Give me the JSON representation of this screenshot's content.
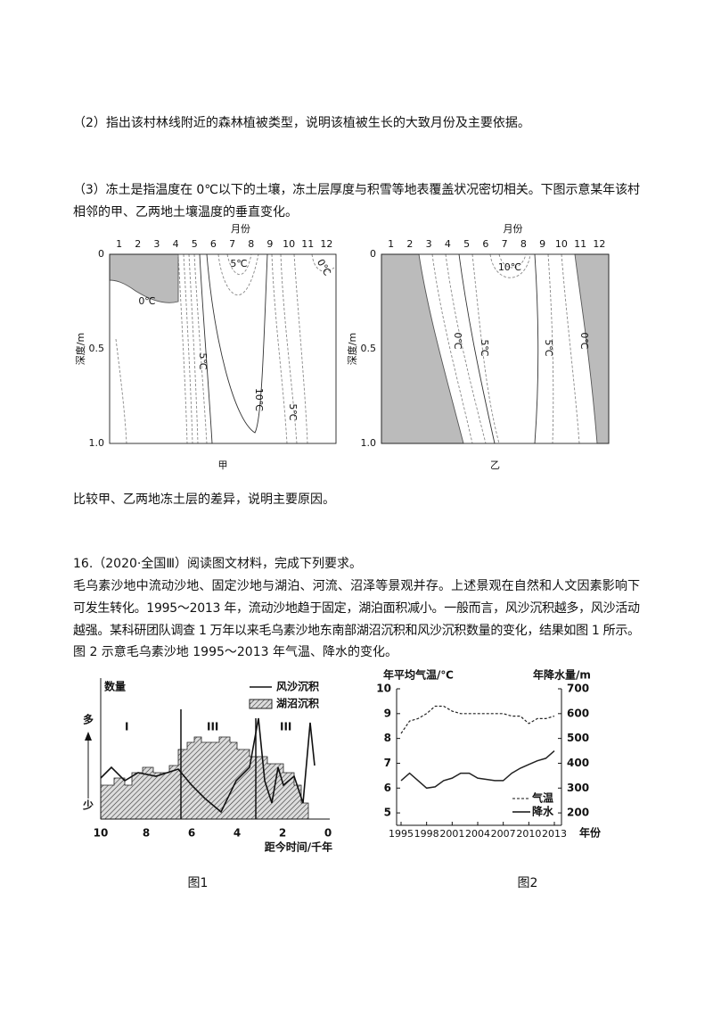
{
  "question2": "（2）指出该村林线附近的森林植被类型，说明该植被生长的大致月份及主要依据。",
  "question3": [
    "（3）冻土是指温度在 0℃以下的土壤，冻土层厚度与积雪等地表覆盖状况密切相关。下图示意某年该村",
    "相邻的甲、乙两地土壤温度的垂直变化。"
  ],
  "contour_figure": {
    "month_label": "月份",
    "months": [
      1,
      2,
      3,
      4,
      5,
      6,
      7,
      8,
      9,
      10,
      11,
      12
    ],
    "depth_label": "深度/m",
    "depth_ticks": [
      "0",
      "0.5",
      "1.0"
    ],
    "panels": [
      {
        "label": "甲",
        "isotherms": [
          "5℃",
          "0℃",
          "0℃",
          "5℃",
          "10℃",
          "5℃"
        ]
      },
      {
        "label": "乙",
        "isotherms": [
          "10℃",
          "0℃",
          "5℃",
          "5℃",
          "0℃"
        ]
      }
    ]
  },
  "question3_task": "比较甲、乙两地冻土层的差异，说明主要原因。",
  "question16": {
    "heading": "16.（2020·全国Ⅲ）阅读图文材料，完成下列要求。",
    "paragraph": [
      "毛乌素沙地中流动沙地、固定沙地与湖泊、河流、沼泽等景观并存。上述景观在自然和人文因素影响下",
      "可发生转化。1995～2013 年，流动沙地趋于固定，湖泊面积减小。一般而言，风沙沉积越多，风沙活动",
      "越强。某科研团队调查 1 万年以来毛乌素沙地东南部湖沼沉积和风沙沉积数量的变化，结果如图 1 所示。",
      "图 2 示意毛乌素沙地 1995～2013 年气温、降水的变化。"
    ]
  },
  "figure1": {
    "y_label": "数量",
    "more": "多",
    "less": "少",
    "legend": [
      "风沙沉积",
      "湖沼沉积"
    ],
    "stages": [
      "I",
      "III",
      "III"
    ],
    "xticks": [
      10,
      8,
      6,
      4,
      2,
      0
    ],
    "x_label": "距今时间/千年",
    "caption": "图1"
  },
  "figure2": {
    "type": "line",
    "y_label": "年平均气温/℃",
    "y2_label": "年降水量/m",
    "x_label": "年份",
    "caption": "图2",
    "x": [
      1995,
      1996,
      1997,
      1998,
      1999,
      2000,
      2001,
      2002,
      2003,
      2004,
      2005,
      2006,
      2007,
      2008,
      2009,
      2010,
      2011,
      2012,
      2013
    ],
    "xlim": [
      1995,
      2013
    ],
    "xticks": [
      1995,
      1998,
      2001,
      2004,
      2007,
      2010,
      2013
    ],
    "ylim": [
      4.5,
      10
    ],
    "yticks": [
      5,
      6,
      7,
      8,
      9,
      10
    ],
    "y2lim": [
      150,
      700
    ],
    "y2ticks": [
      200,
      300,
      400,
      500,
      600,
      700
    ],
    "series": [
      {
        "name": "气温",
        "color": "#222",
        "dashed": true,
        "values": [
          8.2,
          8.7,
          8.8,
          9.0,
          9.3,
          9.3,
          9.1,
          9.0,
          9.0,
          9.0,
          9.0,
          9.0,
          9.0,
          8.9,
          8.9,
          8.6,
          8.8,
          8.8,
          8.9
        ]
      },
      {
        "name": "降水",
        "color": "#222",
        "axis": "y2",
        "values": [
          330,
          360,
          330,
          300,
          305,
          330,
          340,
          360,
          360,
          340,
          335,
          330,
          330,
          360,
          380,
          395,
          410,
          420,
          450
        ]
      }
    ]
  }
}
